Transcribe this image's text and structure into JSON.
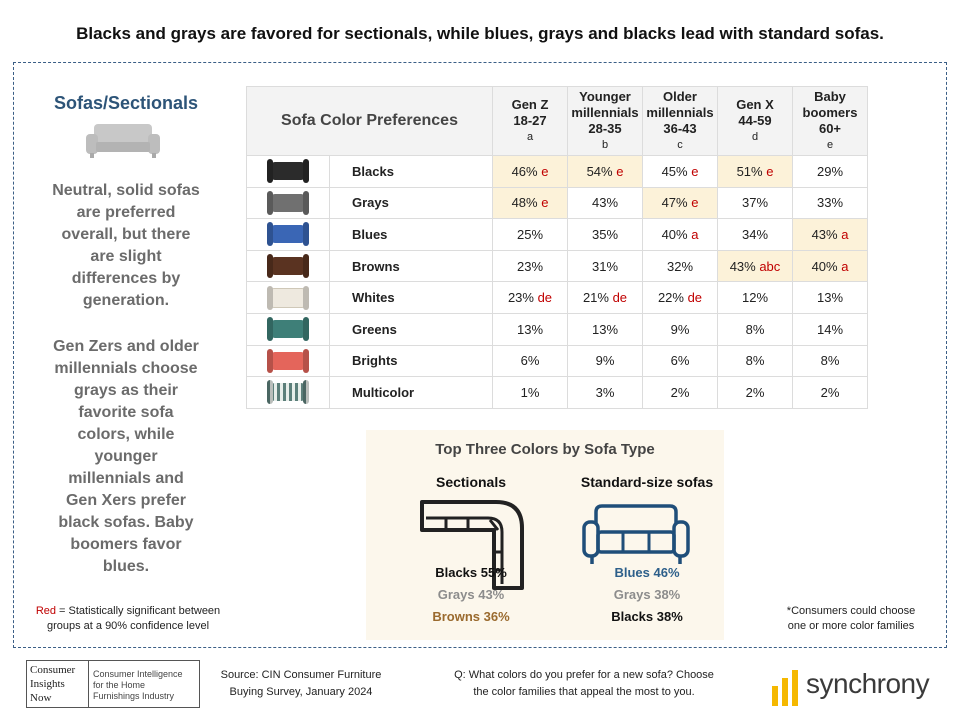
{
  "headline": "Blacks and grays are favored for sectionals, while blues, grays and blacks lead with standard sofas.",
  "left_panel": {
    "title": "Sofas/Sectionals",
    "paragraph1": [
      "Neutral, solid sofas",
      "are preferred",
      "overall, but there",
      "are slight",
      "differences by",
      "generation."
    ],
    "paragraph2": [
      "Gen Zers and older",
      "millennials choose",
      "grays as their",
      "favorite sofa",
      "colors, while",
      "younger",
      "millennials and",
      "Gen Xers prefer",
      "black sofas. Baby",
      "boomers favor",
      "blues."
    ],
    "note_red": "Red",
    "note_line1": " = Statistically significant between",
    "note_line2": "groups at a 90% confidence level"
  },
  "chart_data": [
    {
      "type": "table",
      "title": "Sofa Color Preferences",
      "columns": [
        {
          "line1": "Gen Z",
          "line2": "18-27",
          "letter": "a"
        },
        {
          "line1": "Younger",
          "line1b": "millennials",
          "line2": "28-35",
          "letter": "b"
        },
        {
          "line1": "Older",
          "line1b": "millennials",
          "line2": "36-43",
          "letter": "c"
        },
        {
          "line1": "Gen X",
          "line2": "44-59",
          "letter": "d"
        },
        {
          "line1": "Baby",
          "line1b": "boomers",
          "line2": "60+",
          "letter": "e"
        }
      ],
      "rows": [
        {
          "label": "Blacks",
          "color": "#2b2b2b",
          "cells": [
            {
              "v": "46%",
              "sig": "e",
              "hl": true
            },
            {
              "v": "54%",
              "sig": "e",
              "hl": true
            },
            {
              "v": "45%",
              "sig": "e",
              "hl": false
            },
            {
              "v": "51%",
              "sig": "e",
              "hl": true
            },
            {
              "v": "29%",
              "sig": "",
              "hl": false
            }
          ]
        },
        {
          "label": "Grays",
          "color": "#707070",
          "cells": [
            {
              "v": "48%",
              "sig": "e",
              "hl": true
            },
            {
              "v": "43%",
              "sig": "",
              "hl": false
            },
            {
              "v": "47%",
              "sig": "e",
              "hl": true
            },
            {
              "v": "37%",
              "sig": "",
              "hl": false
            },
            {
              "v": "33%",
              "sig": "",
              "hl": false
            }
          ]
        },
        {
          "label": "Blues",
          "color": "#3a66b5",
          "cells": [
            {
              "v": "25%",
              "sig": "",
              "hl": false
            },
            {
              "v": "35%",
              "sig": "",
              "hl": false
            },
            {
              "v": "40%",
              "sig": "a",
              "hl": false
            },
            {
              "v": "34%",
              "sig": "",
              "hl": false
            },
            {
              "v": "43%",
              "sig": "a",
              "hl": true
            }
          ]
        },
        {
          "label": "Browns",
          "color": "#5a3321",
          "cells": [
            {
              "v": "23%",
              "sig": "",
              "hl": false
            },
            {
              "v": "31%",
              "sig": "",
              "hl": false
            },
            {
              "v": "32%",
              "sig": "",
              "hl": false
            },
            {
              "v": "43%",
              "sig": "abc",
              "hl": true
            },
            {
              "v": "40%",
              "sig": "a",
              "hl": true
            }
          ]
        },
        {
          "label": "Whites",
          "color": "#eee9df",
          "cells": [
            {
              "v": "23%",
              "sig": "de",
              "hl": false
            },
            {
              "v": "21%",
              "sig": "de",
              "hl": false
            },
            {
              "v": "22%",
              "sig": "de",
              "hl": false
            },
            {
              "v": "12%",
              "sig": "",
              "hl": false
            },
            {
              "v": "13%",
              "sig": "",
              "hl": false
            }
          ]
        },
        {
          "label": "Greens",
          "color": "#3e7f78",
          "cells": [
            {
              "v": "13%",
              "sig": "",
              "hl": false
            },
            {
              "v": "13%",
              "sig": "",
              "hl": false
            },
            {
              "v": "9%",
              "sig": "",
              "hl": false
            },
            {
              "v": "8%",
              "sig": "",
              "hl": false
            },
            {
              "v": "14%",
              "sig": "",
              "hl": false
            }
          ]
        },
        {
          "label": "Brights",
          "color": "#e4655b",
          "cells": [
            {
              "v": "6%",
              "sig": "",
              "hl": false
            },
            {
              "v": "9%",
              "sig": "",
              "hl": false
            },
            {
              "v": "6%",
              "sig": "",
              "hl": false
            },
            {
              "v": "8%",
              "sig": "",
              "hl": false
            },
            {
              "v": "8%",
              "sig": "",
              "hl": false
            }
          ]
        },
        {
          "label": "Multicolor",
          "color": "#8aa8a4",
          "cells": [
            {
              "v": "1%",
              "sig": "",
              "hl": false
            },
            {
              "v": "3%",
              "sig": "",
              "hl": false
            },
            {
              "v": "2%",
              "sig": "",
              "hl": false
            },
            {
              "v": "2%",
              "sig": "",
              "hl": false
            },
            {
              "v": "2%",
              "sig": "",
              "hl": false
            }
          ]
        }
      ]
    },
    {
      "type": "table",
      "title": "Top Three Colors by Sofa Type",
      "groups": [
        {
          "name": "Sectionals",
          "items": [
            {
              "label": "Blacks 55%",
              "color": "#111111"
            },
            {
              "label": "Grays 43%",
              "color": "#8c8c8c"
            },
            {
              "label": "Browns 36%",
              "color": "#9a6a2e"
            }
          ]
        },
        {
          "name": "Standard-size sofas",
          "items": [
            {
              "label": "Blues 46%",
              "color": "#2d5f8a"
            },
            {
              "label": "Grays 38%",
              "color": "#8c8c8c"
            },
            {
              "label": "Blacks 38%",
              "color": "#111111"
            }
          ]
        }
      ]
    }
  ],
  "footnote": [
    "*Consumers could choose",
    "one or more color families"
  ],
  "footer": {
    "cin_logo": [
      "Consumer",
      "Insights",
      "Now"
    ],
    "cin_tagline": [
      "Consumer Intelligence",
      "for the Home",
      "Furnishings Industry"
    ],
    "source": [
      "Source: CIN Consumer Furniture",
      "Buying Survey, January 2024"
    ],
    "question": [
      "Q: What colors do you prefer for a new sofa? Choose",
      "the color families that appeal the most to you."
    ],
    "brand": "synchrony"
  },
  "colors": {
    "accent": "#2d5478",
    "highlight": "#fcf2d9",
    "significant": "#c00000",
    "panel": "#fcf7ec",
    "brand_yellow": "#f5b800"
  }
}
